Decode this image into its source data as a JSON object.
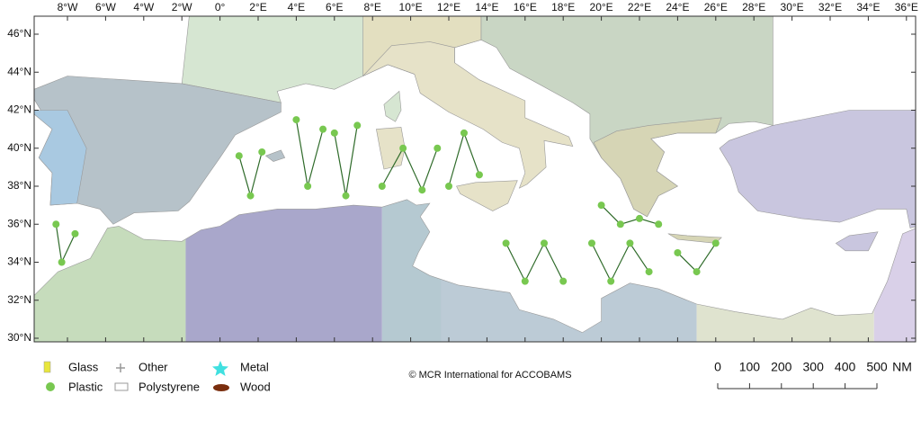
{
  "map": {
    "lon_ticks": [
      "8°W",
      "6°W",
      "4°W",
      "2°W",
      "0°",
      "2°E",
      "4°E",
      "6°E",
      "8°E",
      "10°E",
      "12°E",
      "14°E",
      "16°E",
      "18°E",
      "20°E",
      "22°E",
      "24°E",
      "26°E",
      "28°E",
      "30°E",
      "32°E",
      "34°E",
      "36°E"
    ],
    "lat_ticks": [
      "46°N",
      "44°N",
      "42°N",
      "40°N",
      "38°N",
      "36°N",
      "34°N",
      "32°N",
      "30°N"
    ]
  },
  "legend": {
    "items": [
      "Glass",
      "Plastic",
      "Other",
      "Polystyrene",
      "Metal",
      "Wood"
    ]
  },
  "credit": "© MCR International for ACCOBAMS",
  "scale_bar": {
    "labels": [
      "0",
      "100",
      "200",
      "300",
      "400",
      "500"
    ],
    "unit": "NM"
  }
}
